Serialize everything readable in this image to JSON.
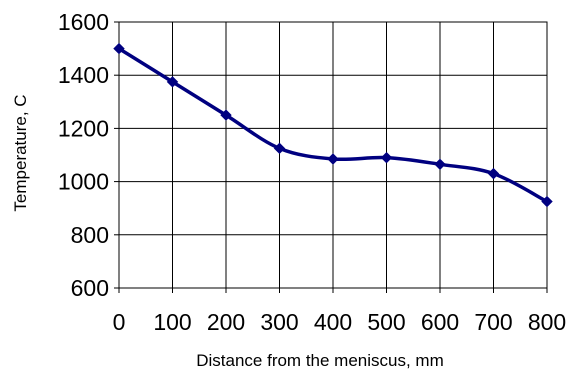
{
  "chart_data": {
    "type": "line",
    "title": "",
    "xlabel": "Distance from the meniscus, mm",
    "ylabel": "Temperature, C",
    "xlim": [
      0,
      800
    ],
    "ylim": [
      600,
      1600
    ],
    "xticks": [
      0,
      100,
      200,
      300,
      400,
      500,
      600,
      700,
      800
    ],
    "yticks": [
      600,
      800,
      1000,
      1200,
      1400,
      1600
    ],
    "grid": true,
    "legend": "none",
    "colors": {
      "line": "#000080",
      "grid": "#000000",
      "background": "#ffffff"
    },
    "series": [
      {
        "marker": "diamond",
        "x": [
          0,
          100,
          200,
          300,
          400,
          500,
          600,
          700,
          800
        ],
        "y": [
          1500,
          1375,
          1250,
          1125,
          1085,
          1090,
          1065,
          1030,
          925
        ]
      }
    ]
  }
}
